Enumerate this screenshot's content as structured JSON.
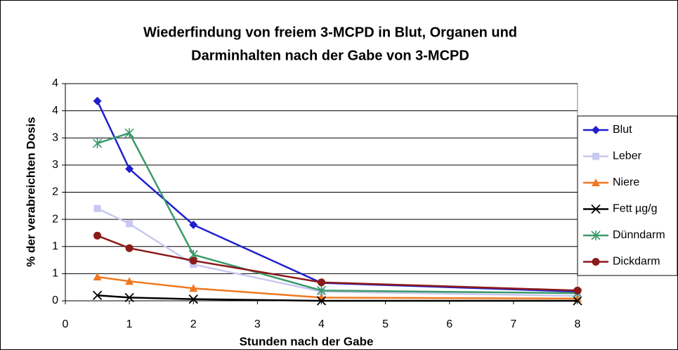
{
  "chart_data": {
    "type": "line",
    "title": "Wiederfindung von freiem 3-MCPD in Blut, Organen und",
    "subtitle": "Darminhalten nach der Gabe von 3-MCPD",
    "x_label": "Stunden nach der Gabe",
    "y_label": "% der verabreichten Dosis",
    "x": [
      0.5,
      1,
      2,
      4,
      8
    ],
    "xlim": [
      0,
      8
    ],
    "xticks": [
      0,
      1,
      2,
      3,
      4,
      5,
      6,
      7,
      8
    ],
    "ylim": [
      0,
      4
    ],
    "yticks": [
      0,
      {
        "value": 0.5,
        "label": "1"
      },
      1,
      {
        "value": 1.5,
        "label": "2"
      },
      2,
      {
        "value": 2.5,
        "label": "3"
      },
      3,
      {
        "value": 3.5,
        "label": "4"
      },
      4
    ],
    "grid": true,
    "legend": "right",
    "series": [
      {
        "name": "Blut",
        "color": "#1f1fd0",
        "marker": "diamond",
        "values": [
          3.68,
          2.43,
          1.4,
          0.33,
          0.17
        ]
      },
      {
        "name": "Leber",
        "color": "#c8c8f0",
        "marker": "square",
        "values": [
          1.7,
          1.42,
          0.67,
          0.17,
          0.09
        ]
      },
      {
        "name": "Niere",
        "color": "#f07820",
        "marker": "triangle",
        "values": [
          0.44,
          0.36,
          0.23,
          0.06,
          0.04
        ]
      },
      {
        "name": "Fett µg/g",
        "color": "#000000",
        "marker": "x",
        "values": [
          0.1,
          0.06,
          0.03,
          0,
          0
        ]
      },
      {
        "name": "Dünndarm",
        "color": "#3a9a6a",
        "marker": "star",
        "values": [
          2.9,
          3.09,
          0.85,
          0.19,
          0.14
        ]
      },
      {
        "name": "Dickdarm",
        "color": "#8b1a1a",
        "marker": "circle",
        "values": [
          1.2,
          0.97,
          0.74,
          0.34,
          0.19
        ]
      }
    ]
  }
}
